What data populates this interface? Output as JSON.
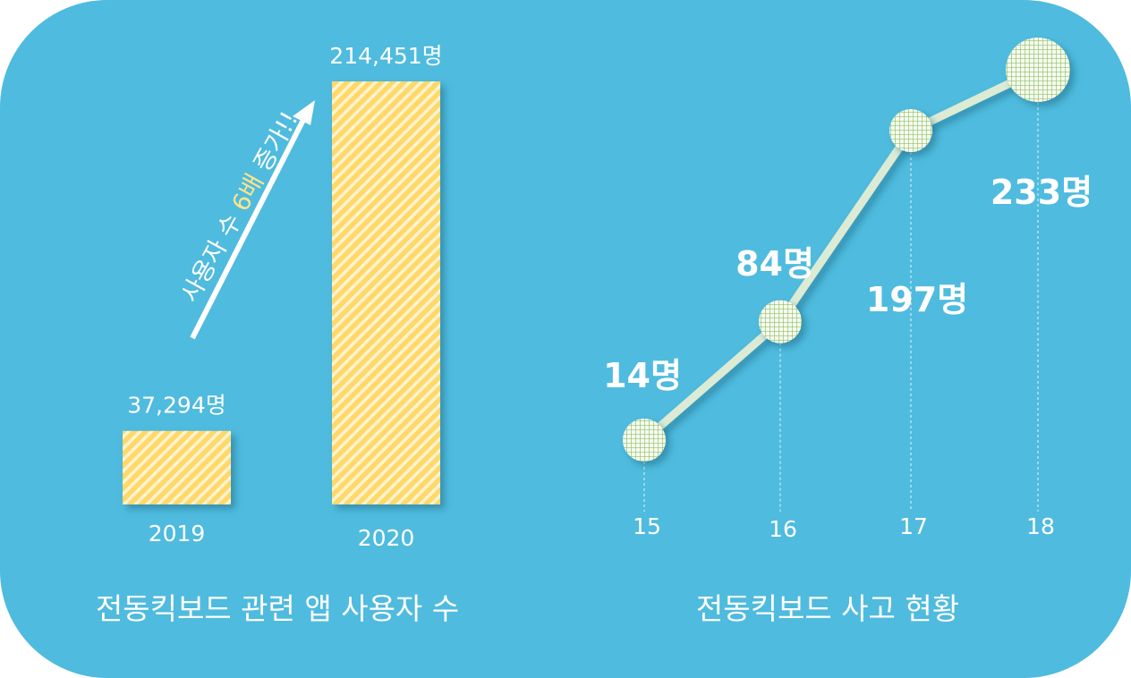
{
  "chart_data": [
    {
      "type": "bar",
      "title": "전동킥보드 관련 앱 사용자 수",
      "categories": [
        "2019",
        "2020"
      ],
      "values": [
        37294,
        214451
      ],
      "value_labels": [
        "37,294명",
        "214,451명"
      ],
      "annotation": {
        "prefix": "사용자 수 ",
        "highlight": "6배",
        "suffix": " 증가!!"
      },
      "colors": {
        "bar": "#ffd86b",
        "stripe": "#ffffff",
        "highlight": "#ffe58a"
      },
      "ylim": [
        0,
        214451
      ]
    },
    {
      "type": "line",
      "title": "전동킥보드 사고 현황",
      "x": [
        "15",
        "16",
        "17",
        "18"
      ],
      "values": [
        14,
        84,
        197,
        233
      ],
      "value_labels": [
        "14명",
        "84명",
        "197명",
        "233명"
      ],
      "colors": {
        "line": "#dcebd4",
        "marker": "#8fbf6a"
      }
    }
  ]
}
